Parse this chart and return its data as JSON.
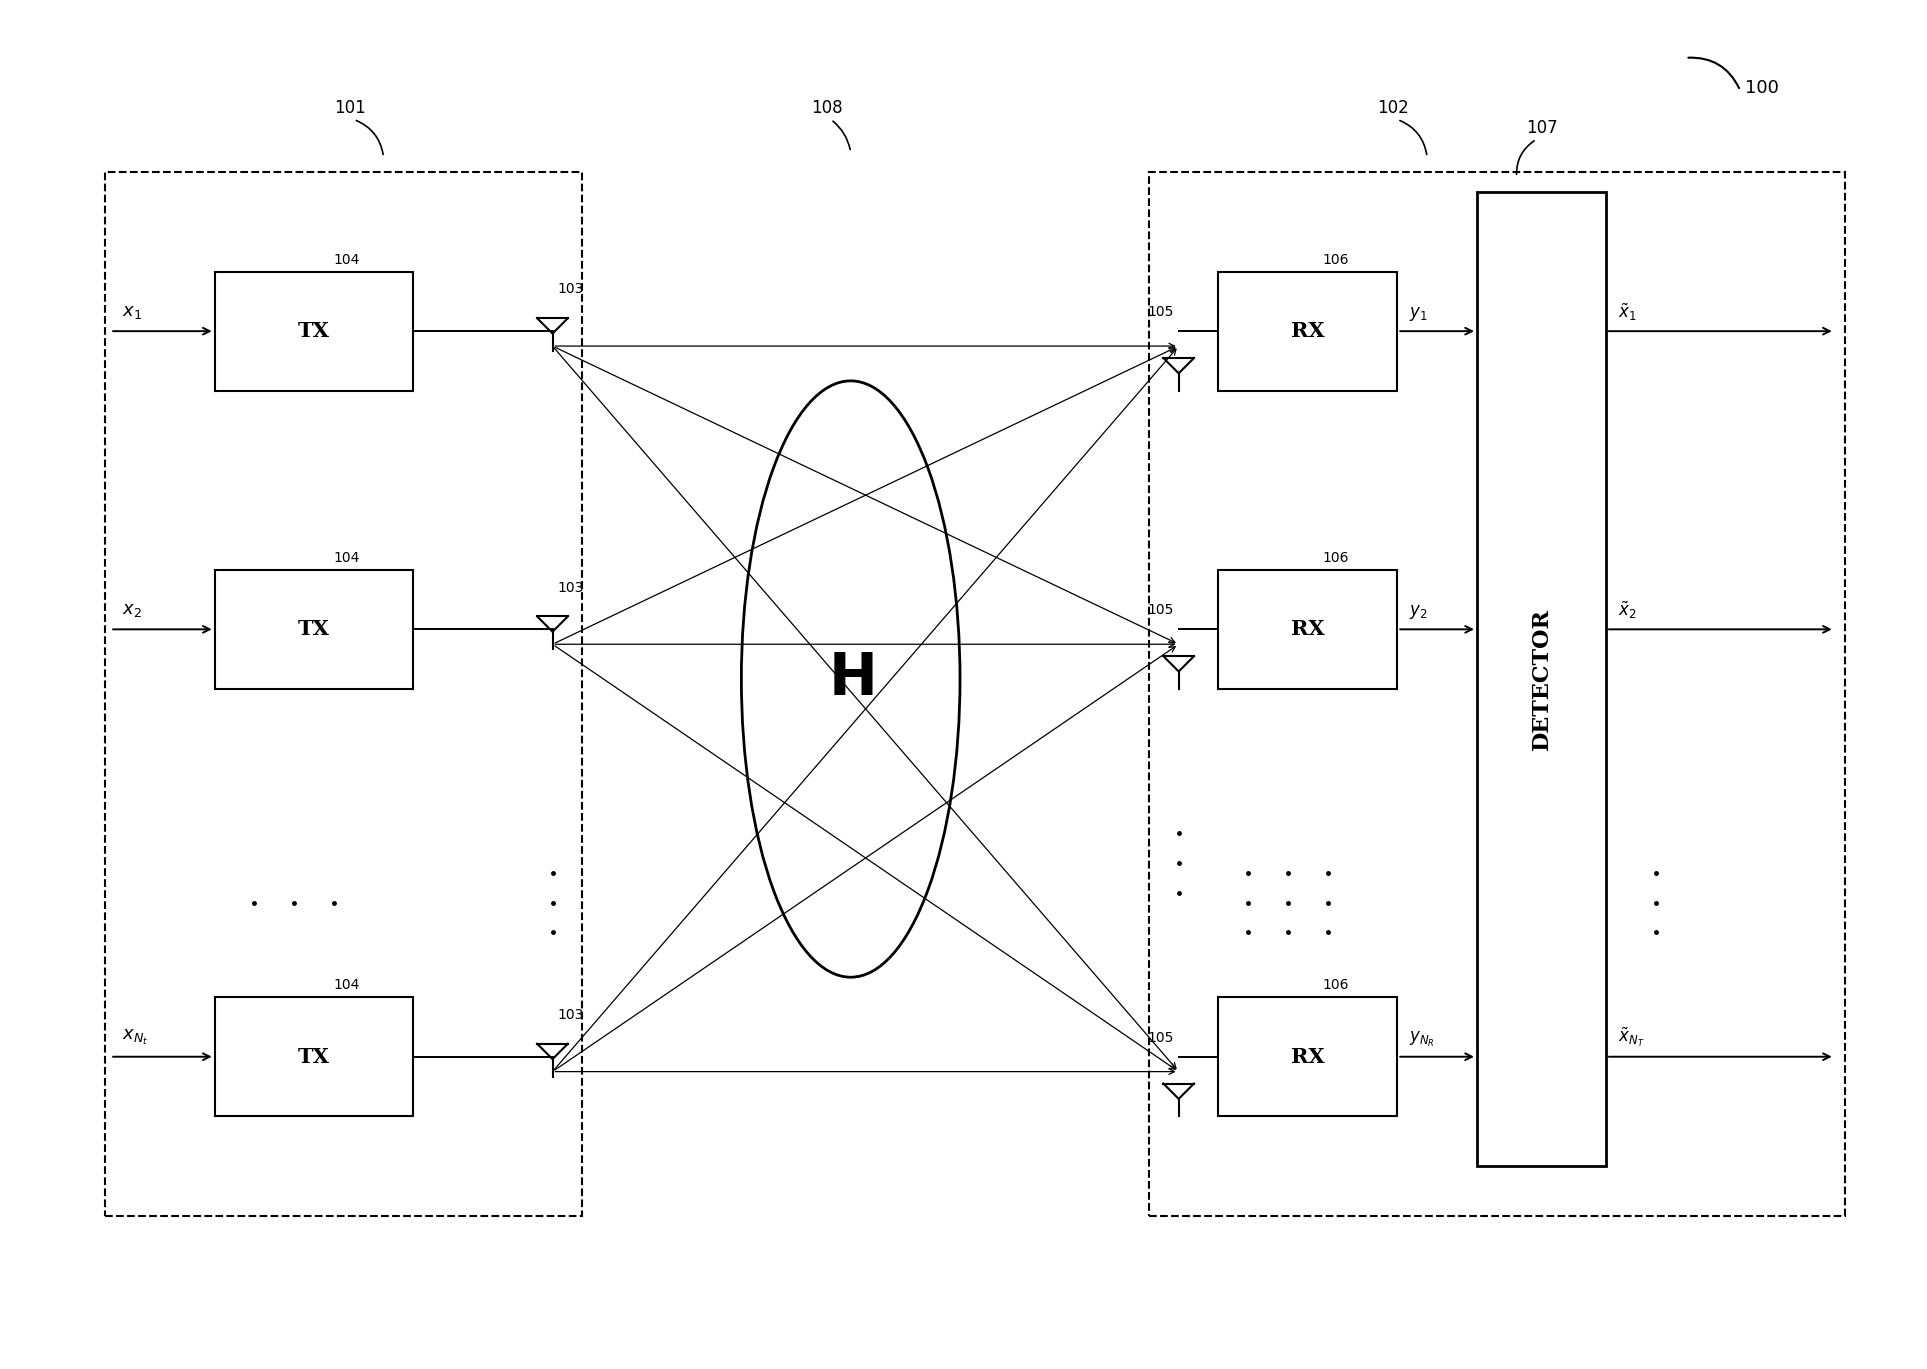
{
  "bg_color": "#ffffff",
  "fig_width": 19.27,
  "fig_height": 13.69,
  "label_100": "100",
  "label_101": "101",
  "label_102": "102",
  "label_108": "108",
  "label_107": "107"
}
